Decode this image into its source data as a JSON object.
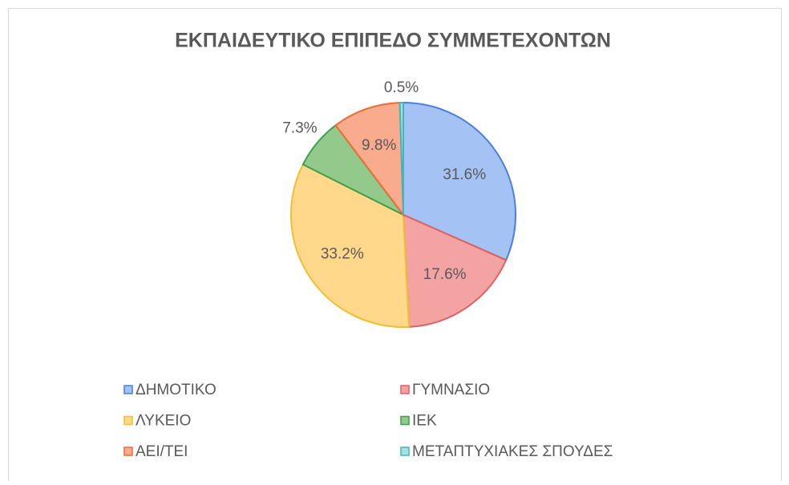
{
  "chart_data": {
    "type": "pie",
    "title": "ΕΚΠΑΙΔΕΥΤΙΚΟ  ΕΠΙΠΕΔΟ ΣΥΜΜΕΤΕΧΟΝΤΩΝ",
    "categories": [
      "ΔΗΜΟΤΙΚΟ",
      "ΓΥΜΝΑΣΙΟ",
      "ΛΥΚΕΙΟ",
      "ΙΕΚ",
      "ΑΕΙ/ΤΕΙ",
      "ΜΕΤΑΠΤΥΧΙΑΚΕΣ ΣΠΟΥΔΕΣ"
    ],
    "values": [
      31.6,
      17.6,
      33.2,
      7.3,
      9.8,
      0.5
    ],
    "value_labels": [
      "31.6%",
      "17.6%",
      "33.2%",
      "7.3%",
      "9.8%",
      "0.5%"
    ],
    "colors": [
      "#a4c2f4",
      "#f4a3a3",
      "#ffd88c",
      "#93c98a",
      "#f9ab8e",
      "#a6e1e1"
    ],
    "edge_colors": [
      "#4a7fe0",
      "#e06060",
      "#f0be30",
      "#3f9f4e",
      "#ee6a35",
      "#45b5bd"
    ],
    "legend": "bottom"
  }
}
